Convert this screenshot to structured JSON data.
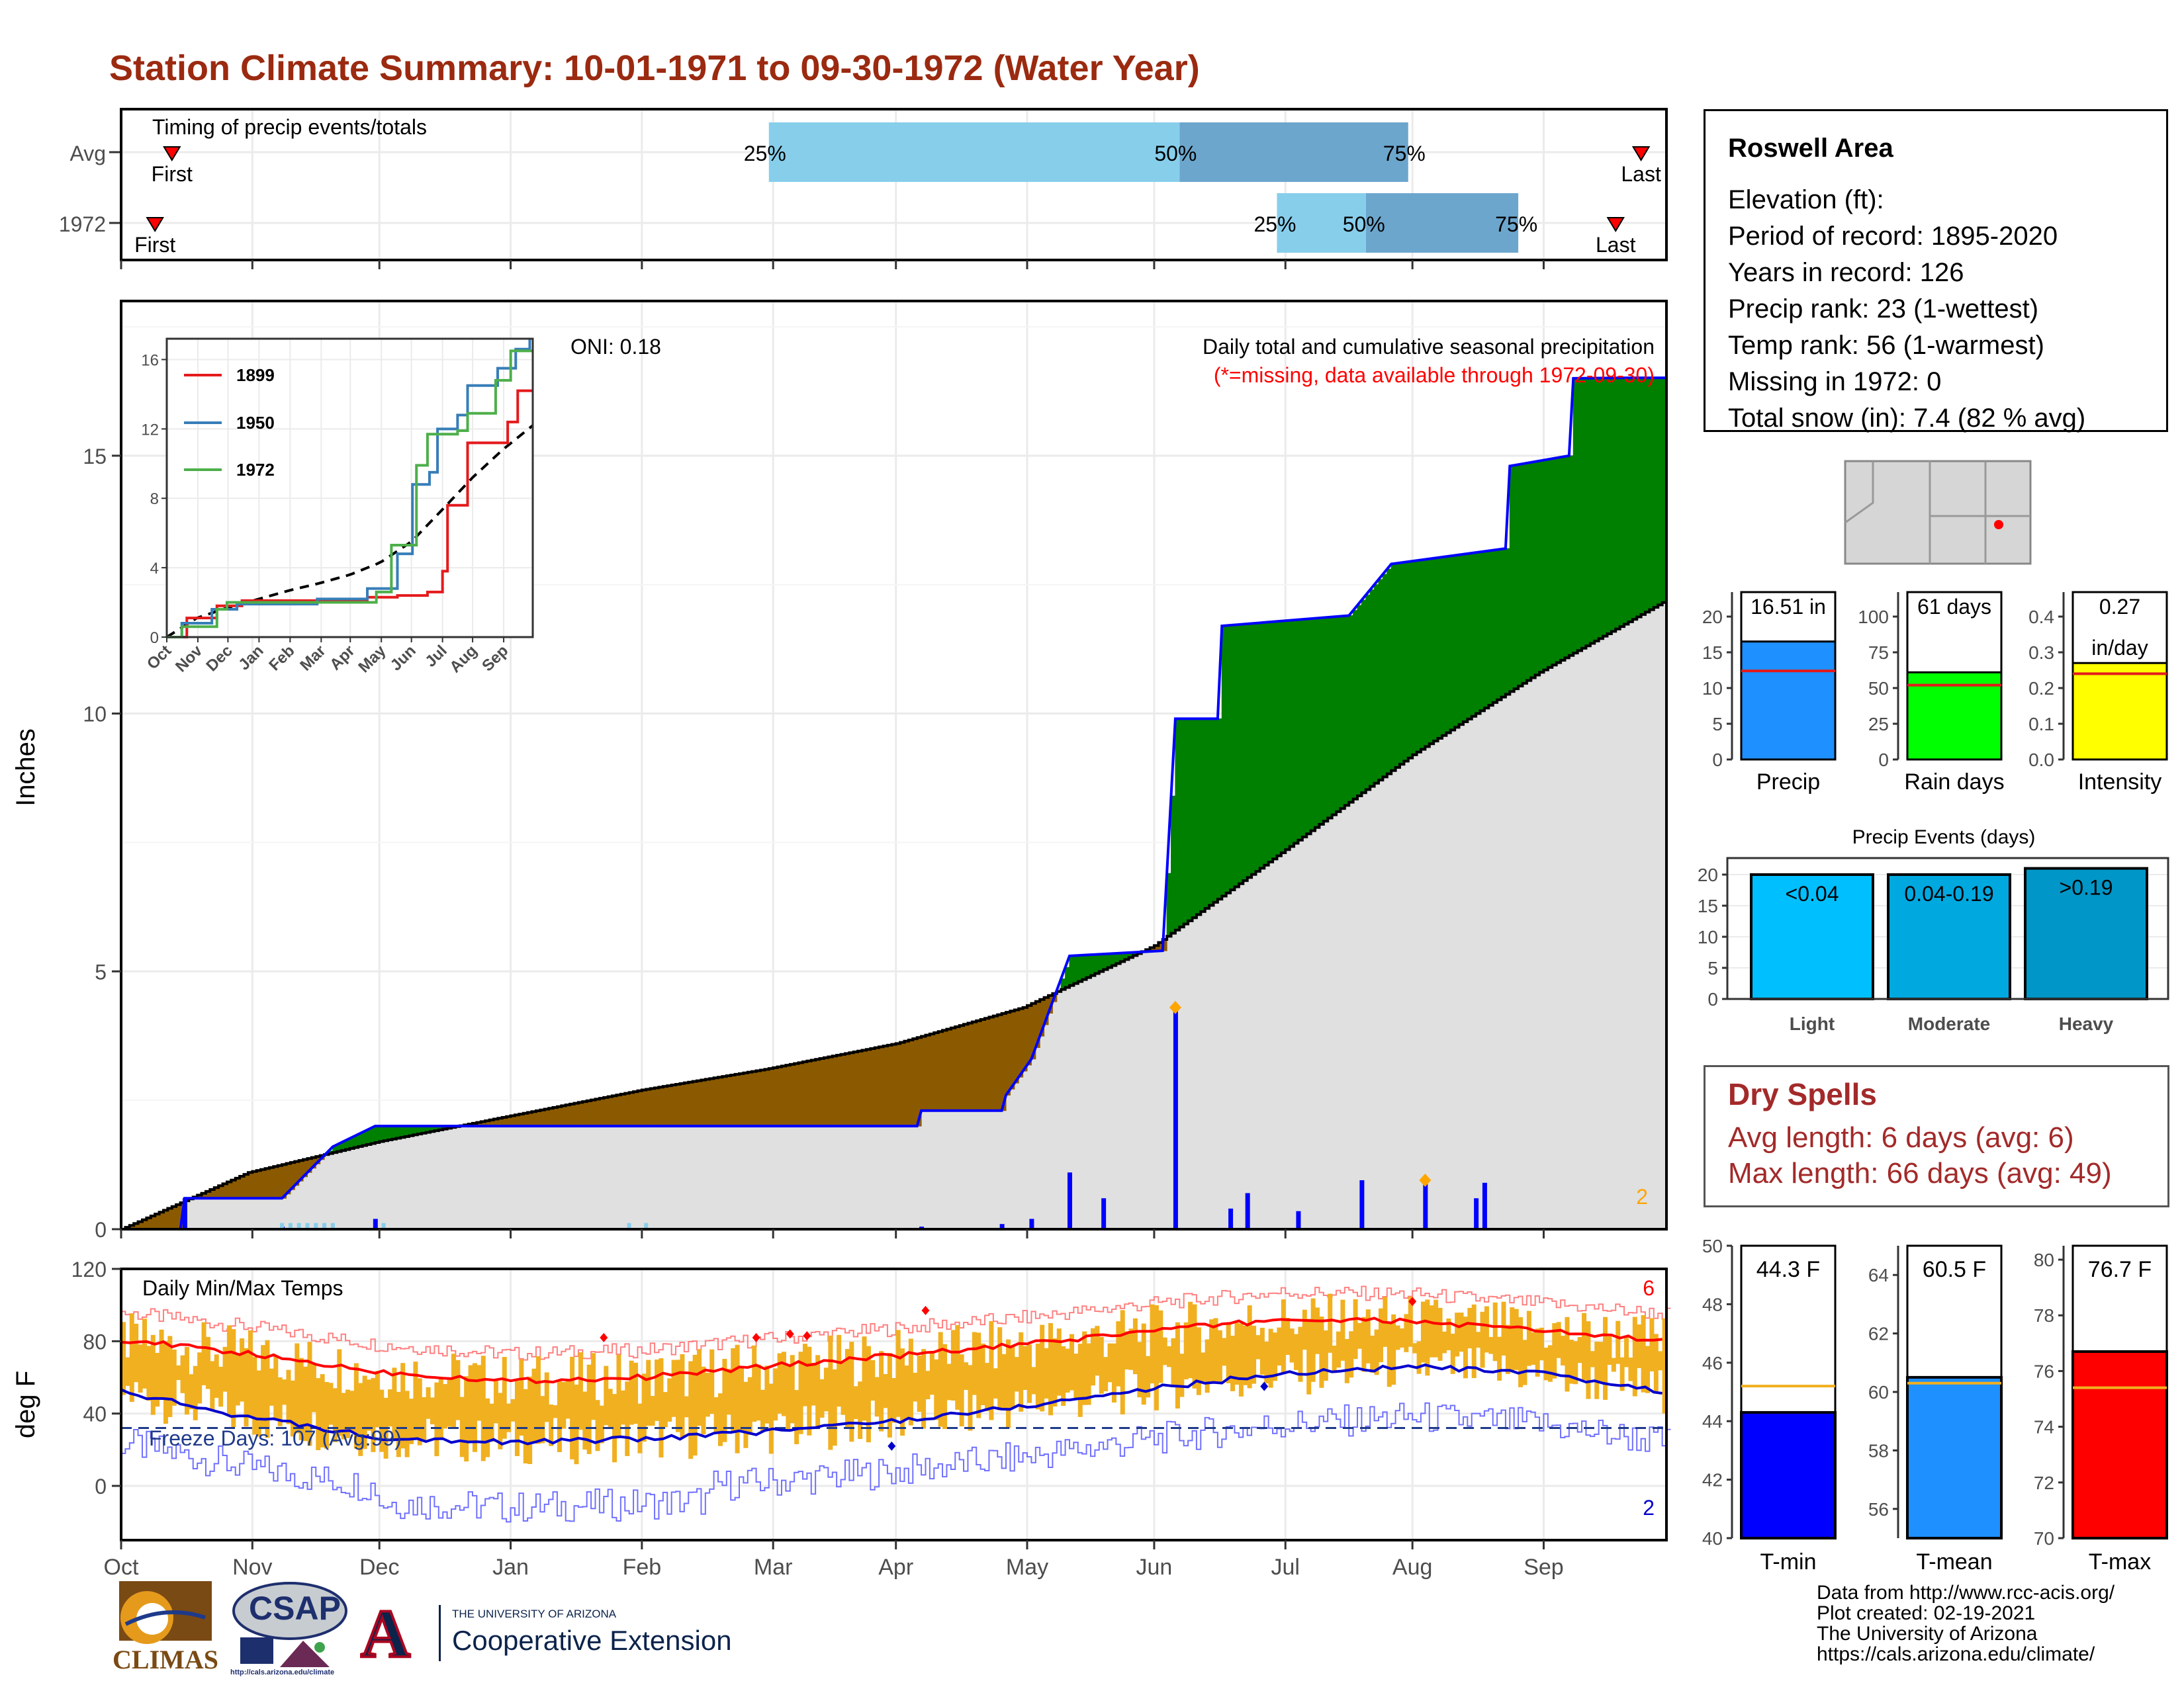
{
  "title": "Station Climate Summary: 10-01-1971 to 09-30-1972 (Water Year)",
  "timing": {
    "label": "Timing of precip events/totals",
    "rows": [
      {
        "name": "Avg",
        "first_label": "First",
        "last_label": "Last",
        "first_day": 12,
        "last_day": 359,
        "q25": 153,
        "q50": 250,
        "q75": 304,
        "q25_label": "25%",
        "q50_label": "50%",
        "q75_label": "75%"
      },
      {
        "name": "1972",
        "first_label": "First",
        "last_label": "Last",
        "first_day": 8,
        "last_day": 353,
        "q25": 273,
        "q50": 294,
        "q75": 330,
        "q25_label": "25%",
        "q50_label": "50%",
        "q75_label": "75%"
      }
    ]
  },
  "info": {
    "station": "Roswell Area",
    "lines": [
      "Elevation (ft):",
      "Period of record: 1895-2020",
      "Years in record: 126",
      "Precip rank: 23 (1-wettest)",
      "Temp rank: 56 (1-warmest)",
      "Missing in 1972: 0",
      "Total snow (in): 7.4 (82 % avg)"
    ]
  },
  "precip_panel": {
    "ylabel": "Inches",
    "subtitle": "Daily total and cumulative seasonal precipitation",
    "missing_note": "(*=missing, data available through 1972-09-30)",
    "oni": "ONI: 0.18",
    "count_label": "2",
    "yticks": [
      "0",
      "5",
      "10",
      "15"
    ]
  },
  "inset": {
    "legend": [
      "1899",
      "1950",
      "1972"
    ],
    "colors": {
      "1899": "#e41a1c",
      "1950": "#377eb8",
      "1972": "#4daf4a"
    },
    "yticks": [
      "0",
      "4",
      "8",
      "12",
      "16"
    ],
    "months": [
      "Oct",
      "Nov",
      "Dec",
      "Jan",
      "Feb",
      "Mar",
      "Apr",
      "May",
      "Jun",
      "Jul",
      "Aug",
      "Sep"
    ]
  },
  "temp_panel": {
    "ylabel": "deg F",
    "label": "Daily Min/Max Temps",
    "freeze": "Freeze Days: 107 (Avg:99)",
    "max_count": "6",
    "min_count": "2",
    "yticks": [
      "0",
      "40",
      "80",
      "120"
    ]
  },
  "months": [
    "Oct",
    "Nov",
    "Dec",
    "Jan",
    "Feb",
    "Mar",
    "Apr",
    "May",
    "Jun",
    "Jul",
    "Aug",
    "Sep"
  ],
  "summary_bars": {
    "precip": {
      "label": "Precip",
      "value_label": "16.51 in",
      "value": 16.51,
      "avg": 12.4,
      "ymax": 20,
      "ticks": [
        "0",
        "5",
        "10",
        "15",
        "20"
      ],
      "color": "#1e90ff"
    },
    "raindays": {
      "label": "Rain days",
      "value_label": "61 days",
      "value": 61,
      "avg": 52,
      "ymax": 100,
      "ticks": [
        "0",
        "25",
        "50",
        "75",
        "100"
      ],
      "color": "#00ff00"
    },
    "intensity": {
      "label": "Intensity",
      "value_label": "0.27",
      "value_label2": "in/day",
      "value": 0.27,
      "avg": 0.24,
      "ymax": 0.4,
      "ticks": [
        "0.0",
        "0.1",
        "0.2",
        "0.3",
        "0.4"
      ],
      "color": "#ffff00"
    }
  },
  "events": {
    "title": "Precip Events (days)",
    "ticks": [
      "0",
      "5",
      "10",
      "15",
      "20"
    ],
    "bars": [
      {
        "name": "Light",
        "label": "<0.04",
        "value": 20,
        "color": "#00bfff"
      },
      {
        "name": "Moderate",
        "label": "0.04-0.19",
        "value": 20,
        "color": "#00a8e0"
      },
      {
        "name": "Heavy",
        "label": ">0.19",
        "value": 21,
        "color": "#0096c7"
      }
    ]
  },
  "dry_spells": {
    "title": "Dry Spells",
    "avg": "Avg length: 6 days (avg: 6)",
    "max": "Max length: 66 days (avg: 49)"
  },
  "temp_bars": {
    "tmin": {
      "label": "T-min",
      "value_label": "44.3 F",
      "value": 44.3,
      "avg": 45.2,
      "ymin": 40,
      "ymax": 50,
      "ticks": [
        "40",
        "42",
        "44",
        "46",
        "48",
        "50"
      ],
      "color": "#0000ff"
    },
    "tmean": {
      "label": "T-mean",
      "value_label": "60.5 F",
      "value": 60.5,
      "avg": 60.3,
      "ymin": 55,
      "ymax": 65,
      "ticks": [
        "56",
        "58",
        "60",
        "62",
        "64"
      ],
      "color": "#1e90ff"
    },
    "tmax": {
      "label": "T-max",
      "value_label": "76.7 F",
      "value": 76.7,
      "avg": 75.4,
      "ymin": 70,
      "ymax": 80.5,
      "ticks": [
        "70",
        "72",
        "74",
        "76",
        "78",
        "80"
      ],
      "color": "#ff0000"
    }
  },
  "footer": [
    "Data from http://www.rcc-acis.org/",
    "Plot created: 02-19-2021",
    "The University of Arizona",
    "https://cals.arizona.edu/climate/"
  ],
  "logos": {
    "climas": "CLIMAS",
    "csap": "CSAP",
    "csap_url": "http://cals.arizona.edu/climate",
    "ua_line1": "THE UNIVERSITY OF ARIZONA",
    "ua_line2": "Cooperative Extension",
    "ua_letter": "A"
  },
  "chart_data": {
    "type": "area",
    "title": "Station Climate Summary: 10-01-1971 to 09-30-1972 (Water Year)",
    "ylabel": "Inches",
    "ylim": [
      0,
      18
    ],
    "x": [
      "Oct",
      "Nov",
      "Dec",
      "Jan",
      "Feb",
      "Mar",
      "Apr",
      "May",
      "Jun",
      "Jul",
      "Aug",
      "Sep"
    ],
    "series": [
      {
        "name": "average cumulative",
        "x": [
          0,
          30,
          61,
          92,
          123,
          152,
          183,
          213,
          244,
          274,
          305,
          335,
          365
        ],
        "values": [
          0,
          1.1,
          1.7,
          2.2,
          2.7,
          3.1,
          3.6,
          4.3,
          5.5,
          7.3,
          9.2,
          10.8,
          12.2
        ]
      },
      {
        "name": "1972 cumulative",
        "x": [
          0,
          14,
          15,
          38,
          50,
          60,
          188,
          189,
          208,
          209,
          215,
          224,
          246,
          249,
          259,
          260,
          290,
          300,
          327,
          328,
          342,
          343,
          355,
          365
        ],
        "values": [
          0,
          0,
          0.6,
          0.6,
          1.6,
          2.0,
          2.0,
          2.3,
          2.3,
          2.6,
          3.3,
          5.3,
          5.4,
          9.9,
          9.9,
          11.7,
          11.9,
          12.9,
          13.2,
          14.8,
          15.0,
          16.5,
          16.51,
          16.51
        ]
      }
    ],
    "daily_precip": [
      {
        "day": 15,
        "value": 0.6
      },
      {
        "day": 38,
        "value": 0.05
      },
      {
        "day": 60,
        "value": 0.2
      },
      {
        "day": 189,
        "value": 0.05
      },
      {
        "day": 208,
        "value": 0.1
      },
      {
        "day": 215,
        "value": 0.2
      },
      {
        "day": 224,
        "value": 1.1
      },
      {
        "day": 232,
        "value": 0.6
      },
      {
        "day": 249,
        "value": 4.3
      },
      {
        "day": 262,
        "value": 0.4
      },
      {
        "day": 266,
        "value": 0.7
      },
      {
        "day": 278,
        "value": 0.35
      },
      {
        "day": 293,
        "value": 0.95
      },
      {
        "day": 308,
        "value": 0.9
      },
      {
        "day": 320,
        "value": 0.6
      },
      {
        "day": 322,
        "value": 0.9
      }
    ],
    "temperature": {
      "ylim": [
        -30,
        120
      ],
      "avg_max": {
        "x": [
          0,
          30,
          61,
          92,
          123,
          152,
          183,
          213,
          244,
          274,
          305,
          335,
          365
        ],
        "values": [
          81,
          73,
          63,
          58,
          60,
          66,
          72,
          78,
          86,
          92,
          91,
          86,
          80
        ]
      },
      "avg_min": {
        "x": [
          0,
          30,
          61,
          92,
          123,
          152,
          183,
          213,
          244,
          274,
          305,
          335,
          365
        ],
        "values": [
          52,
          38,
          27,
          24,
          26,
          30,
          36,
          44,
          54,
          62,
          66,
          62,
          52
        ]
      },
      "freeze_line": 32
    }
  }
}
